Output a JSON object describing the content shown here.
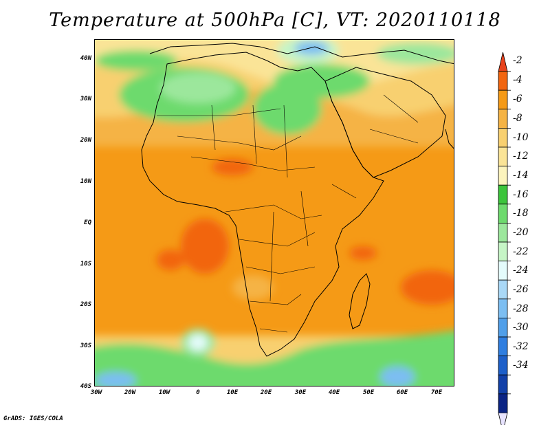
{
  "title": "Temperature at 500hPa [C], VT: 2020110118",
  "footer": "GrADS: IGES/COLA",
  "lat_labels": [
    "40N",
    "30N",
    "20N",
    "10N",
    "EQ",
    "10S",
    "20S",
    "30S",
    "40S"
  ],
  "lon_labels": [
    "30W",
    "20W",
    "10W",
    "0",
    "10E",
    "20E",
    "30E",
    "40E",
    "50E",
    "60E",
    "70E"
  ],
  "colorbar": {
    "labels": [
      "-2",
      "-4",
      "-6",
      "-8",
      "-10",
      "-12",
      "-14",
      "-16",
      "-18",
      "-20",
      "-22",
      "-24",
      "-26",
      "-28",
      "-30",
      "-32",
      "-34"
    ],
    "colors": [
      "#e8421c",
      "#f2650f",
      "#f59a16",
      "#f5b344",
      "#f8d070",
      "#fae497",
      "#fcf4bd",
      "#3cc43c",
      "#6dda6d",
      "#9ce79c",
      "#c6f5c6",
      "#e4fbfb",
      "#a9d8f7",
      "#7cbef2",
      "#509fe9",
      "#2f7ee0",
      "#1d5fc9",
      "#1240a8",
      "#0b2484",
      "#e8e4ff"
    ]
  }
}
